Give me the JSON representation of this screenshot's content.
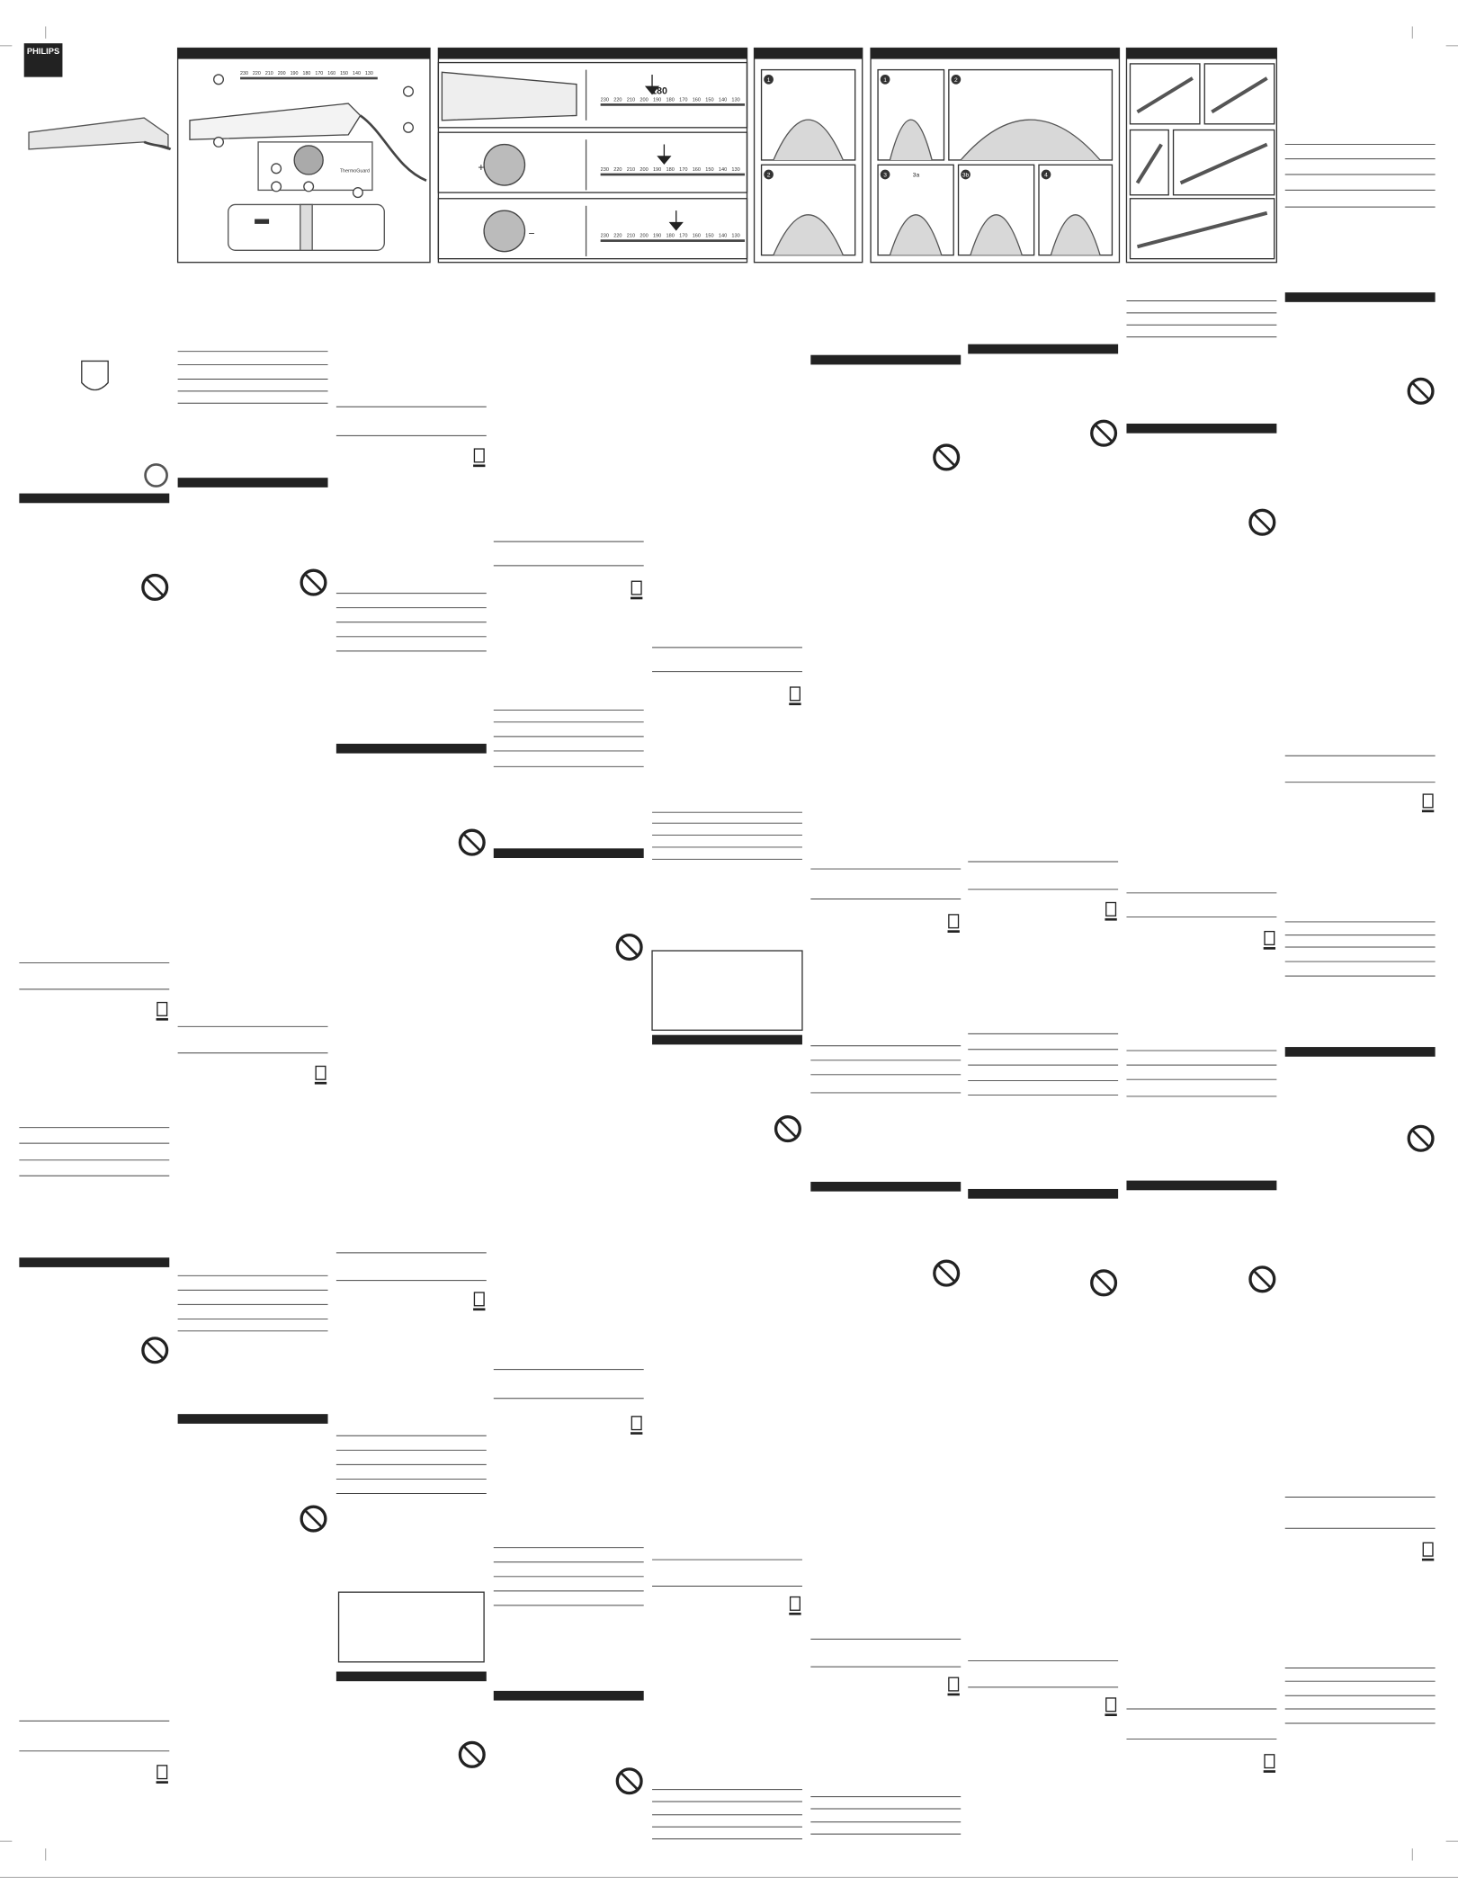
{
  "brand": "PHILIPS",
  "temperature_scale": [
    "230",
    "220",
    "210",
    "200",
    "190",
    "180",
    "170",
    "160",
    "150",
    "140",
    "130"
  ],
  "highlighted_temperature": "180",
  "dial_signs": [
    "+",
    "−"
  ],
  "feature_label": "ThermoGuard",
  "styling_steps": [
    "1",
    "2"
  ],
  "curl_steps": [
    "1",
    "2",
    "3",
    "3a",
    "3b",
    "4"
  ]
}
